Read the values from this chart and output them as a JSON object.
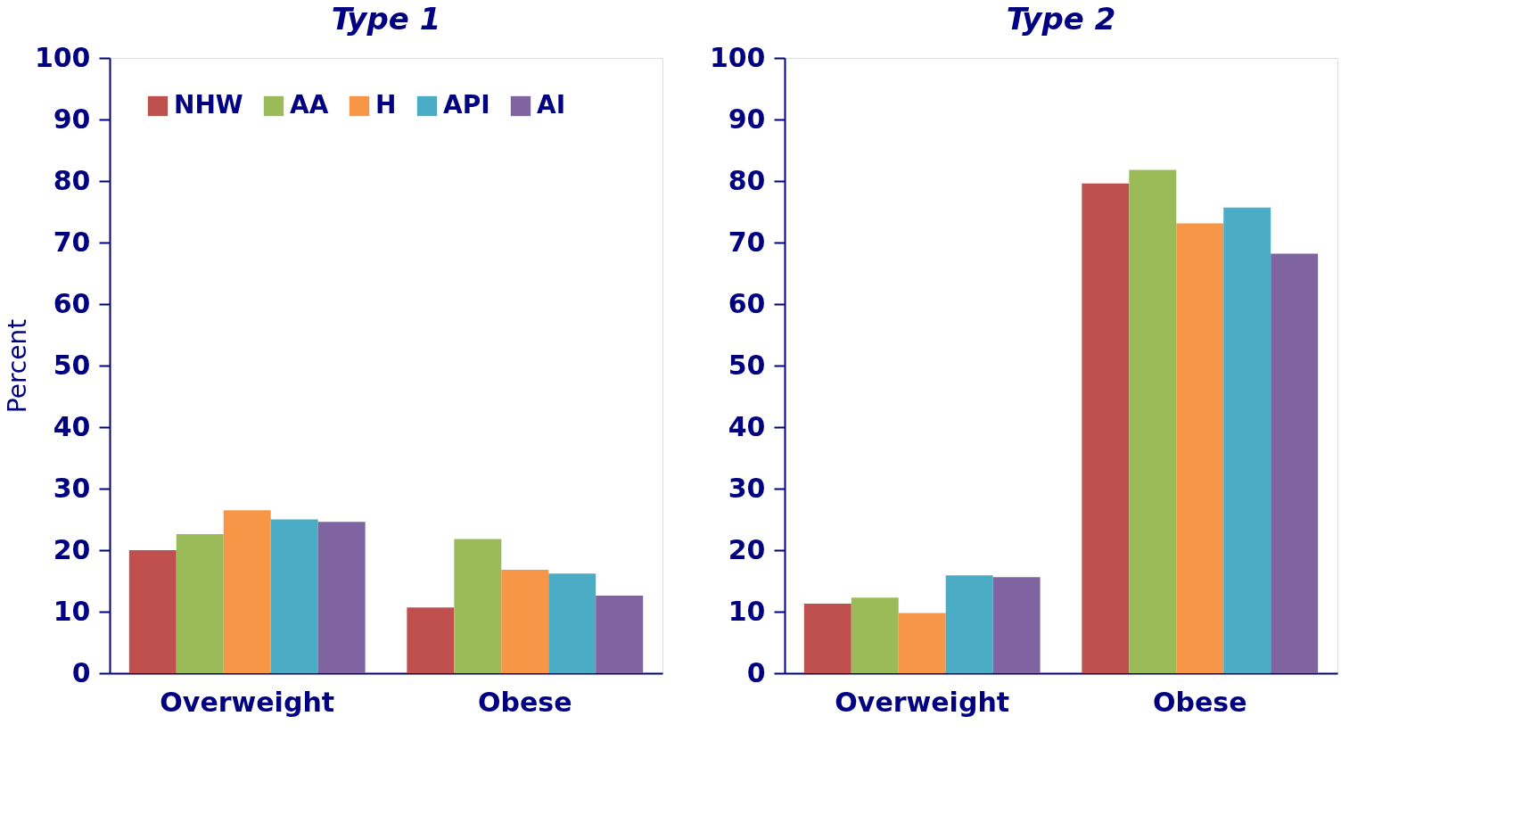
{
  "chart_data": [
    {
      "type": "bar",
      "title": "Type 1",
      "ylabel": "Percent",
      "categories": [
        "Overweight",
        "Obese"
      ],
      "ylim": [
        0,
        100
      ],
      "yticks": [
        0,
        10,
        20,
        30,
        40,
        50,
        60,
        70,
        80,
        90,
        100
      ],
      "grid": false,
      "legend": "top left",
      "series": [
        {
          "name": "NHW",
          "color": "#c0504d",
          "values": [
            20.0,
            10.7
          ]
        },
        {
          "name": "AA",
          "color": "#9bbb59",
          "values": [
            22.6,
            21.8
          ]
        },
        {
          "name": "H",
          "color": "#f79646",
          "values": [
            26.5,
            16.8
          ]
        },
        {
          "name": "API",
          "color": "#4bacc6",
          "values": [
            25.0,
            16.2
          ]
        },
        {
          "name": "AI",
          "color": "#8064a2",
          "values": [
            24.6,
            12.6
          ]
        }
      ]
    },
    {
      "type": "bar",
      "title": "Type 2",
      "categories": [
        "Overweight",
        "Obese"
      ],
      "ylim": [
        0,
        100
      ],
      "yticks": [
        0,
        10,
        20,
        30,
        40,
        50,
        60,
        70,
        80,
        90,
        100
      ],
      "grid": false,
      "legend": false,
      "series": [
        {
          "color": "#c0504d",
          "values": [
            11.3,
            79.6
          ]
        },
        {
          "color": "#9bbb59",
          "values": [
            12.3,
            81.8
          ]
        },
        {
          "color": "#f79646",
          "values": [
            9.8,
            73.1
          ]
        },
        {
          "color": "#4bacc6",
          "values": [
            15.9,
            75.7
          ]
        },
        {
          "color": "#8064a2",
          "values": [
            15.6,
            68.2
          ]
        }
      ]
    }
  ]
}
